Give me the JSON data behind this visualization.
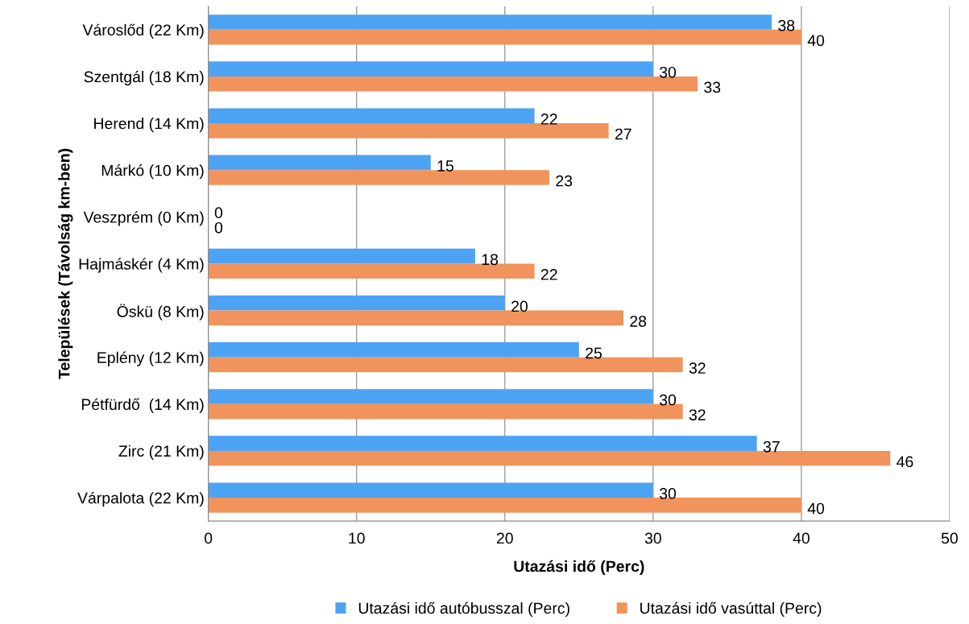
{
  "chart_data": {
    "type": "bar",
    "orientation": "horizontal",
    "xlabel": "Utazási idő (Perc)",
    "ylabel": "Települések (Távolság km-ben)",
    "categories": [
      "Városlőd (22 Km)",
      "Szentgál (18 Km)",
      "Herend (14 Km)",
      "Márkó (10 Km)",
      "Veszprém (0 Km)",
      "Hajmáskér (4 Km)",
      "Öskü (8 Km)",
      "Eplény (12 Km)",
      "Pétfürdő  (14 Km)",
      "Zirc (21 Km)",
      "Várpalota (22 Km)"
    ],
    "series": [
      {
        "name": "Utazási idő autóbusszal (Perc)",
        "color": "#4da3f3",
        "values": [
          38,
          30,
          22,
          15,
          0,
          18,
          20,
          25,
          30,
          37,
          30
        ]
      },
      {
        "name": "Utazási idő vasúttal (Perc)",
        "color": "#f0935c",
        "values": [
          40,
          33,
          27,
          23,
          0,
          22,
          28,
          32,
          32,
          46,
          40
        ]
      }
    ],
    "xlim": [
      0,
      50
    ],
    "xticks": [
      0,
      10,
      20,
      30,
      40,
      50
    ],
    "grid": "x",
    "legend": "bottom",
    "data_labels": true
  }
}
